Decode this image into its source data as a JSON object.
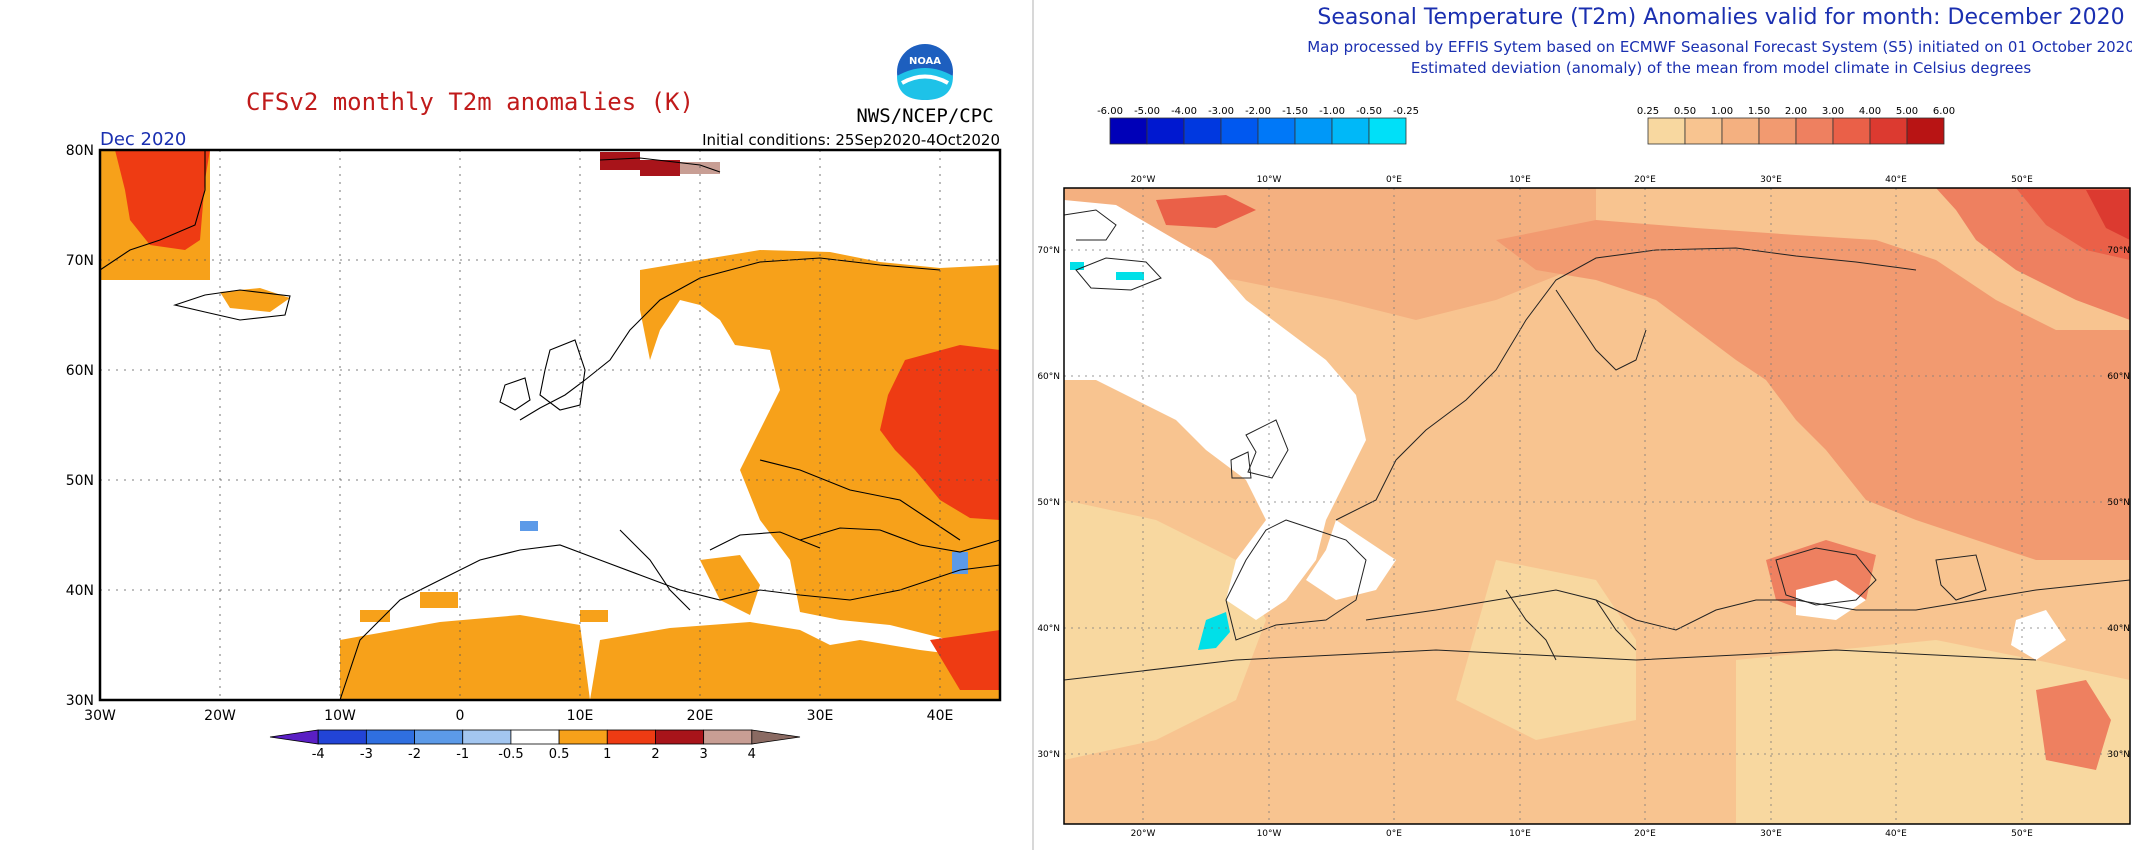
{
  "left_map": {
    "title": "CFSv2 monthly T2m anomalies (K)",
    "agency": "NWS/NCEP/CPC",
    "logo_text": "NOAA",
    "month_label": "Dec 2020",
    "init_conditions": "Initial conditions: 25Sep2020-4Oct2020",
    "lat_labels": [
      "80N",
      "70N",
      "60N",
      "50N",
      "40N",
      "30N"
    ],
    "lon_labels": [
      "30W",
      "20W",
      "10W",
      "0",
      "10E",
      "20E",
      "30E",
      "40E"
    ],
    "colorbar": {
      "tick_labels": [
        "-4",
        "-3",
        "-2",
        "-1",
        "-0.5",
        "0.5",
        "1",
        "2",
        "3",
        "4"
      ],
      "colors": [
        "#5a1fc4",
        "#2244d6",
        "#2f6fe0",
        "#5c9ae8",
        "#a3c6f0",
        "#ffffff",
        "#f7a11a",
        "#ee3b13",
        "#a8141a",
        "#c89e94",
        "#8a6a62"
      ]
    }
  },
  "right_map": {
    "title": "Seasonal Temperature (T2m) Anomalies valid for month: December 2020",
    "subtitle1": "Map processed by EFFIS Sytem based on ECMWF Seasonal Forecast System (S5) initiated on 01 October 2020",
    "subtitle2": "Estimated deviation (anomaly) of the mean from model climate in Celsius degrees",
    "neg_scale": {
      "labels": [
        "-6.00",
        "-5.00",
        "-4.00",
        "-3.00",
        "-2.00",
        "-1.50",
        "-1.00",
        "-0.50",
        "-0.25"
      ],
      "colors": [
        "#0000b8",
        "#0018d0",
        "#0038e0",
        "#0058f0",
        "#0078f8",
        "#0098f8",
        "#00b8f8",
        "#00e0f8"
      ]
    },
    "pos_scale": {
      "labels": [
        "0.25",
        "0.50",
        "1.00",
        "1.50",
        "2.00",
        "3.00",
        "4.00",
        "5.00",
        "6.00"
      ],
      "colors": [
        "#f8d8a0",
        "#f8c490",
        "#f4b080",
        "#f29a70",
        "#ee8060",
        "#ea6048",
        "#dc3a30",
        "#b81414"
      ]
    },
    "top_lon_labels": [
      "20°W",
      "10°W",
      "0°E",
      "10°E",
      "20°E",
      "30°E",
      "40°E",
      "50°E"
    ],
    "bottom_lon_labels": [
      "20°W",
      "10°W",
      "0°E",
      "10°E",
      "20°E",
      "30°E",
      "40°E",
      "50°E"
    ],
    "left_lat_labels": [
      "70°N",
      "60°N",
      "50°N",
      "40°N",
      "30°N"
    ],
    "right_lat_labels": [
      "70°N",
      "60°N",
      "50°N",
      "40°N",
      "30°N"
    ]
  }
}
